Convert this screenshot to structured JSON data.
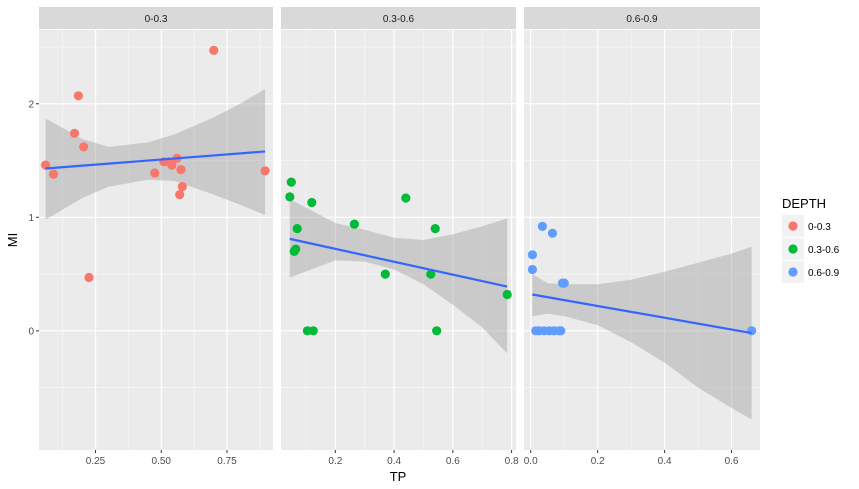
{
  "chart_data": {
    "type": "scatter",
    "xlabel": "TP",
    "ylabel": "MI",
    "y_range": [
      -1.05,
      2.65
    ],
    "y_ticks": [
      0,
      1,
      2
    ],
    "grid": true,
    "legend": {
      "title": "DEPTH",
      "position": "right",
      "entries": [
        {
          "label": "0-0.3",
          "color": "#F8766D"
        },
        {
          "label": "0.3-0.6",
          "color": "#00BA38"
        },
        {
          "label": "0.6-0.9",
          "color": "#619CFF"
        }
      ]
    },
    "colors": {
      "panel_bg": "#EBEBEB",
      "grid_major": "#FFFFFF",
      "strip_bg": "#D9D9D9",
      "fit_line": "#3366FF",
      "ribbon": "#999999"
    },
    "facets": [
      {
        "strip": "0-0.3",
        "color": "#F8766D",
        "x_range": [
          0.035,
          0.925
        ],
        "x_ticks": [
          0.25,
          0.5,
          0.75
        ],
        "x_tick_labels": [
          "0.25",
          "0.50",
          "0.75"
        ],
        "points": [
          [
            0.06,
            1.46
          ],
          [
            0.09,
            1.38
          ],
          [
            0.17,
            1.74
          ],
          [
            0.185,
            2.07
          ],
          [
            0.205,
            1.62
          ],
          [
            0.225,
            0.47
          ],
          [
            0.475,
            1.39
          ],
          [
            0.51,
            1.49
          ],
          [
            0.53,
            1.49
          ],
          [
            0.54,
            1.46
          ],
          [
            0.56,
            1.52
          ],
          [
            0.57,
            1.2
          ],
          [
            0.575,
            1.42
          ],
          [
            0.58,
            1.27
          ],
          [
            0.7,
            2.47
          ],
          [
            0.895,
            1.41
          ]
        ],
        "fit": {
          "x": [
            0.06,
            0.895
          ],
          "y": [
            1.43,
            1.58
          ]
        },
        "ribbon": {
          "x": [
            0.06,
            0.2,
            0.3,
            0.45,
            0.55,
            0.7,
            0.8,
            0.895
          ],
          "lower": [
            0.98,
            1.17,
            1.27,
            1.33,
            1.32,
            1.2,
            1.11,
            1.02
          ],
          "upper": [
            1.87,
            1.69,
            1.62,
            1.66,
            1.73,
            1.88,
            2.0,
            2.13
          ]
        }
      },
      {
        "strip": "0.3-0.6",
        "color": "#00BA38",
        "x_range": [
          0.015,
          0.815
        ],
        "x_ticks": [
          0.2,
          0.4,
          0.6,
          0.8
        ],
        "x_tick_labels": [
          "0.2",
          "0.4",
          "0.6",
          "0.8"
        ],
        "points": [
          [
            0.045,
            1.18
          ],
          [
            0.05,
            1.31
          ],
          [
            0.06,
            0.7
          ],
          [
            0.065,
            0.72
          ],
          [
            0.07,
            0.9
          ],
          [
            0.105,
            0.0
          ],
          [
            0.12,
            1.13
          ],
          [
            0.125,
            0.0
          ],
          [
            0.265,
            0.94
          ],
          [
            0.37,
            0.5
          ],
          [
            0.44,
            1.17
          ],
          [
            0.525,
            0.5
          ],
          [
            0.54,
            0.9
          ],
          [
            0.545,
            0.0
          ],
          [
            0.785,
            0.32
          ]
        ],
        "fit": {
          "x": [
            0.045,
            0.785
          ],
          "y": [
            0.81,
            0.39
          ]
        },
        "ribbon": {
          "x": [
            0.045,
            0.2,
            0.3,
            0.4,
            0.5,
            0.6,
            0.7,
            0.785
          ],
          "lower": [
            0.47,
            0.62,
            0.61,
            0.54,
            0.41,
            0.23,
            0.03,
            -0.2
          ],
          "upper": [
            1.16,
            0.95,
            0.89,
            0.82,
            0.8,
            0.85,
            0.92,
            0.99
          ]
        }
      },
      {
        "strip": "0.6-0.9",
        "color": "#619CFF",
        "x_range": [
          -0.02,
          0.685
        ],
        "x_ticks": [
          0.0,
          0.2,
          0.4,
          0.6
        ],
        "x_tick_labels": [
          "0.0",
          "0.2",
          "0.4",
          "0.6"
        ],
        "points": [
          [
            0.005,
            0.67
          ],
          [
            0.005,
            0.54
          ],
          [
            0.015,
            0.0
          ],
          [
            0.025,
            0.0
          ],
          [
            0.035,
            0.92
          ],
          [
            0.04,
            0.0
          ],
          [
            0.055,
            0.0
          ],
          [
            0.065,
            0.86
          ],
          [
            0.07,
            0.0
          ],
          [
            0.085,
            0.0
          ],
          [
            0.09,
            0.0
          ],
          [
            0.095,
            0.42
          ],
          [
            0.1,
            0.42
          ],
          [
            0.66,
            0.0
          ]
        ],
        "fit": {
          "x": [
            0.005,
            0.66
          ],
          "y": [
            0.32,
            -0.02
          ]
        },
        "ribbon": {
          "x": [
            0.005,
            0.05,
            0.1,
            0.2,
            0.3,
            0.4,
            0.5,
            0.6,
            0.66
          ],
          "lower": [
            0.13,
            0.15,
            0.13,
            0.05,
            -0.1,
            -0.28,
            -0.5,
            -0.68,
            -0.78
          ],
          "upper": [
            0.5,
            0.42,
            0.41,
            0.41,
            0.45,
            0.52,
            0.6,
            0.68,
            0.74
          ]
        }
      }
    ]
  }
}
